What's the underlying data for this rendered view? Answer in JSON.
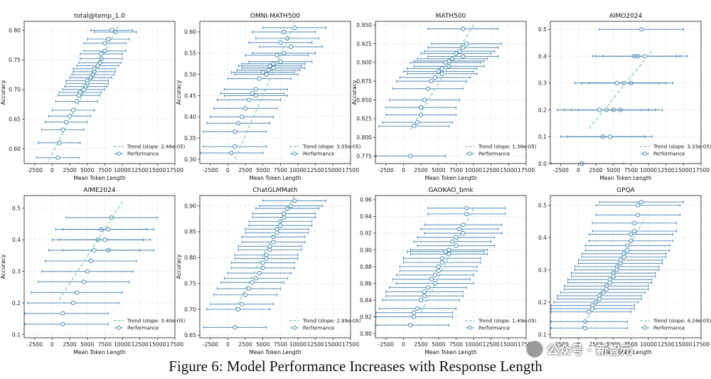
{
  "figure": {
    "caption": "Figure 6: Model Performance Increases with Response Length",
    "watermark": "公众号 · 新智元"
  },
  "colors": {
    "points": "#4a86b4",
    "trend": "#8fd3b5",
    "grid": "#d8d8d8",
    "frame": "#333333"
  },
  "legend": {
    "trend_label_prefix": "Trend (slope: ",
    "performance_label": "Performance"
  },
  "chart_data": [
    {
      "type": "scatter",
      "title": "total@temp_1.0",
      "xlabel": "Mean Token Length",
      "ylabel": "Accuracy",
      "xlim": [
        -4000,
        17500
      ],
      "ylim": [
        0.575,
        0.815
      ],
      "xticks": [
        "-2500",
        "0",
        "2500",
        "5000",
        "7500",
        "10000",
        "12500",
        "15000",
        "17500"
      ],
      "yticks": [
        "0.60",
        "0.65",
        "0.70",
        "0.75",
        "0.80"
      ],
      "ytick_values": [
        0.6,
        0.65,
        0.7,
        0.75,
        0.8
      ],
      "trend_slope": "2.46e-05",
      "trend": [
        [
          -500,
          0.58
        ],
        [
          9500,
          0.81
        ]
      ],
      "error_half": 3000,
      "points": [
        [
          8500,
          0.8
        ],
        [
          9000,
          0.797
        ],
        [
          8000,
          0.785
        ],
        [
          7500,
          0.778
        ],
        [
          7500,
          0.765
        ],
        [
          7000,
          0.76
        ],
        [
          7000,
          0.752
        ],
        [
          6800,
          0.745
        ],
        [
          6500,
          0.74
        ],
        [
          6000,
          0.735
        ],
        [
          6000,
          0.73
        ],
        [
          5800,
          0.725
        ],
        [
          5500,
          0.72
        ],
        [
          5000,
          0.715
        ],
        [
          5000,
          0.71
        ],
        [
          4800,
          0.705
        ],
        [
          4500,
          0.7
        ],
        [
          4000,
          0.695
        ],
        [
          3800,
          0.69
        ],
        [
          3500,
          0.68
        ],
        [
          3000,
          0.665
        ],
        [
          2500,
          0.655
        ],
        [
          2000,
          0.645
        ],
        [
          1500,
          0.632
        ],
        [
          1000,
          0.61
        ],
        [
          800,
          0.585
        ]
      ]
    },
    {
      "type": "scatter",
      "title": "OMNI-MATH500",
      "xlabel": "Mean Token Length",
      "ylabel": "Accuracy",
      "xlim": [
        -4000,
        17500
      ],
      "ylim": [
        0.29,
        0.625
      ],
      "xticks": [
        "-2500",
        "0",
        "2500",
        "5000",
        "7500",
        "10000",
        "12500",
        "15000",
        "17500"
      ],
      "yticks": [
        "0.30",
        "0.35",
        "0.40",
        "0.45",
        "0.50",
        "0.55",
        "0.60"
      ],
      "ytick_values": [
        0.3,
        0.35,
        0.4,
        0.45,
        0.5,
        0.55,
        0.6
      ],
      "trend_slope": "3.05e-05",
      "trend": [
        [
          1000,
          0.3
        ],
        [
          9500,
          0.62
        ]
      ],
      "error_half": 4500,
      "points": [
        [
          9500,
          0.61
        ],
        [
          8000,
          0.6
        ],
        [
          8500,
          0.585
        ],
        [
          7500,
          0.575
        ],
        [
          9000,
          0.565
        ],
        [
          8000,
          0.55
        ],
        [
          7000,
          0.545
        ],
        [
          7500,
          0.53
        ],
        [
          6500,
          0.525
        ],
        [
          6000,
          0.52
        ],
        [
          6500,
          0.515
        ],
        [
          5800,
          0.51
        ],
        [
          5000,
          0.505
        ],
        [
          5500,
          0.5
        ],
        [
          4500,
          0.49
        ],
        [
          4000,
          0.465
        ],
        [
          3500,
          0.455
        ],
        [
          4000,
          0.45
        ],
        [
          3000,
          0.44
        ],
        [
          2500,
          0.42
        ],
        [
          2000,
          0.4
        ],
        [
          1500,
          0.385
        ],
        [
          1000,
          0.365
        ],
        [
          1000,
          0.33
        ],
        [
          500,
          0.315
        ]
      ]
    },
    {
      "type": "scatter",
      "title": "MATH500",
      "xlabel": "Mean Token Length",
      "ylabel": "Accuracy",
      "xlim": [
        -4000,
        17500
      ],
      "ylim": [
        0.765,
        0.955
      ],
      "xticks": [
        "-2500",
        "0",
        "2500",
        "5000",
        "7500",
        "10000",
        "12500",
        "15000",
        "17500"
      ],
      "yticks": [
        "0.775",
        "0.800",
        "0.825",
        "0.850",
        "0.875",
        "0.900",
        "0.925",
        "0.950"
      ],
      "ytick_values": [
        0.775,
        0.8,
        0.825,
        0.85,
        0.875,
        0.9,
        0.925,
        0.95
      ],
      "trend_slope": "1.36e-05",
      "trend": [
        [
          1000,
          0.81
        ],
        [
          10000,
          0.95
        ]
      ],
      "error_half": 5000,
      "points": [
        [
          8500,
          0.945
        ],
        [
          9000,
          0.925
        ],
        [
          8500,
          0.92
        ],
        [
          8000,
          0.915
        ],
        [
          7500,
          0.912
        ],
        [
          8500,
          0.908
        ],
        [
          7000,
          0.905
        ],
        [
          6500,
          0.902
        ],
        [
          6000,
          0.9
        ],
        [
          6500,
          0.895
        ],
        [
          5500,
          0.892
        ],
        [
          5000,
          0.888
        ],
        [
          5500,
          0.885
        ],
        [
          4500,
          0.88
        ],
        [
          4000,
          0.875
        ],
        [
          3500,
          0.865
        ],
        [
          3000,
          0.85
        ],
        [
          2500,
          0.84
        ],
        [
          2500,
          0.83
        ],
        [
          2000,
          0.82
        ],
        [
          1500,
          0.815
        ],
        [
          1000,
          0.775
        ]
      ]
    },
    {
      "type": "scatter",
      "title": "AIMO2024",
      "xlabel": "Mean Token Length",
      "ylabel": "",
      "xlim": [
        -4000,
        17500
      ],
      "ylim": [
        0.0,
        0.53
      ],
      "xticks": [
        "-2500",
        "0",
        "2500",
        "5000",
        "7500",
        "10000",
        "12500",
        "15000",
        "17500"
      ],
      "yticks": [
        "0.0",
        "0.1",
        "0.2",
        "0.3",
        "0.4",
        "0.5"
      ],
      "ytick_values": [
        0.0,
        0.1,
        0.2,
        0.3,
        0.4,
        0.5
      ],
      "trend_slope": "3.33e-05",
      "trend": [
        [
          1500,
          0.13
        ],
        [
          10500,
          0.42
        ]
      ],
      "error_half": 6000,
      "points": [
        [
          9000,
          0.5
        ],
        [
          8000,
          0.4
        ],
        [
          8500,
          0.4
        ],
        [
          9500,
          0.4
        ],
        [
          7500,
          0.3
        ],
        [
          6500,
          0.3
        ],
        [
          5500,
          0.3
        ],
        [
          6000,
          0.2
        ],
        [
          5000,
          0.2
        ],
        [
          4000,
          0.2
        ],
        [
          3000,
          0.2
        ],
        [
          3500,
          0.1
        ],
        [
          4500,
          0.1
        ],
        [
          500,
          0.0
        ]
      ]
    },
    {
      "type": "scatter",
      "title": "AIME2024",
      "xlabel": "Mean Token Length",
      "ylabel": "Accuracy",
      "xlim": [
        -4000,
        17500
      ],
      "ylim": [
        0.09,
        0.54
      ],
      "xticks": [
        "-2500",
        "0",
        "2500",
        "5000",
        "7500",
        "10000",
        "12500",
        "15000",
        "17500"
      ],
      "yticks": [
        "0.1",
        "0.2",
        "0.3",
        "0.4",
        "0.5"
      ],
      "ytick_values": [
        0.1,
        0.2,
        0.3,
        0.4,
        0.5
      ],
      "trend_slope": "3.40e-05",
      "trend": [
        [
          1000,
          0.21
        ],
        [
          10000,
          0.52
        ]
      ],
      "error_half": 6500,
      "points": [
        [
          8500,
          0.47
        ],
        [
          7000,
          0.433
        ],
        [
          8000,
          0.433
        ],
        [
          6500,
          0.4
        ],
        [
          7500,
          0.4
        ],
        [
          8000,
          0.367
        ],
        [
          6000,
          0.367
        ],
        [
          5500,
          0.333
        ],
        [
          5000,
          0.3
        ],
        [
          4500,
          0.267
        ],
        [
          3500,
          0.233
        ],
        [
          3000,
          0.2
        ],
        [
          1500,
          0.167
        ],
        [
          1500,
          0.133
        ]
      ]
    },
    {
      "type": "scatter",
      "title": "ChatGLMMath",
      "xlabel": "Mean Token Length",
      "ylabel": "Accuracy",
      "xlim": [
        -4000,
        17500
      ],
      "ylim": [
        0.645,
        0.92
      ],
      "xticks": [
        "-2500",
        "0",
        "2500",
        "5000",
        "7500",
        "10000",
        "12500",
        "15000",
        "17500"
      ],
      "yticks": [
        "0.65",
        "0.70",
        "0.75",
        "0.80",
        "0.85",
        "0.90"
      ],
      "ytick_values": [
        0.65,
        0.7,
        0.75,
        0.8,
        0.85,
        0.9
      ],
      "trend_slope": "2.99e-05",
      "trend": [
        [
          1000,
          0.7
        ],
        [
          9500,
          0.92
        ]
      ],
      "error_half": 4500,
      "points": [
        [
          9500,
          0.91
        ],
        [
          9000,
          0.9
        ],
        [
          8500,
          0.895
        ],
        [
          8000,
          0.885
        ],
        [
          8000,
          0.878
        ],
        [
          7500,
          0.87
        ],
        [
          7500,
          0.862
        ],
        [
          7000,
          0.855
        ],
        [
          7000,
          0.848
        ],
        [
          6500,
          0.84
        ],
        [
          6500,
          0.83
        ],
        [
          6000,
          0.822
        ],
        [
          6000,
          0.815
        ],
        [
          5500,
          0.805
        ],
        [
          5500,
          0.798
        ],
        [
          5000,
          0.79
        ],
        [
          5000,
          0.78
        ],
        [
          4500,
          0.77
        ],
        [
          4000,
          0.76
        ],
        [
          3500,
          0.752
        ],
        [
          3000,
          0.74
        ],
        [
          2500,
          0.728
        ],
        [
          2000,
          0.71
        ],
        [
          1500,
          0.7
        ],
        [
          1000,
          0.665
        ]
      ]
    },
    {
      "type": "scatter",
      "title": "GAOKAO_bmk",
      "xlabel": "Mean Token Length",
      "ylabel": "",
      "xlim": [
        -4000,
        17500
      ],
      "ylim": [
        0.795,
        0.965
      ],
      "xticks": [
        "-2500",
        "0",
        "2500",
        "5000",
        "7500",
        "10000",
        "12500",
        "15000",
        "17500"
      ],
      "yticks": [
        "0.80",
        "0.82",
        "0.84",
        "0.86",
        "0.88",
        "0.90",
        "0.92",
        "0.94",
        "0.96"
      ],
      "ytick_values": [
        0.8,
        0.82,
        0.84,
        0.86,
        0.88,
        0.9,
        0.92,
        0.94,
        0.96
      ],
      "trend_slope": "1.49e-05",
      "trend": [
        [
          2500,
          0.825
        ],
        [
          10000,
          0.95
        ]
      ],
      "error_half": 5500,
      "points": [
        [
          9000,
          0.95
        ],
        [
          9000,
          0.943
        ],
        [
          8500,
          0.93
        ],
        [
          8000,
          0.925
        ],
        [
          8500,
          0.92
        ],
        [
          7500,
          0.915
        ],
        [
          7000,
          0.91
        ],
        [
          7500,
          0.905
        ],
        [
          6500,
          0.9
        ],
        [
          6000,
          0.898
        ],
        [
          6500,
          0.895
        ],
        [
          5500,
          0.89
        ],
        [
          5500,
          0.885
        ],
        [
          5000,
          0.88
        ],
        [
          5000,
          0.875
        ],
        [
          4500,
          0.87
        ],
        [
          4000,
          0.865
        ],
        [
          4500,
          0.86
        ],
        [
          3500,
          0.855
        ],
        [
          3000,
          0.85
        ],
        [
          3000,
          0.845
        ],
        [
          2500,
          0.84
        ],
        [
          2000,
          0.83
        ],
        [
          1500,
          0.825
        ],
        [
          1500,
          0.82
        ],
        [
          1000,
          0.81
        ]
      ]
    },
    {
      "type": "scatter",
      "title": "GPQA",
      "xlabel": "Mean Token Length",
      "ylabel": "",
      "xlim": [
        -4000,
        17500
      ],
      "ylim": [
        0.09,
        0.53
      ],
      "xticks": [
        "-2500",
        "0",
        "2500",
        "5000",
        "7500",
        "10000",
        "12500",
        "15000",
        "17500"
      ],
      "yticks": [
        "0.1",
        "0.2",
        "0.3",
        "0.4",
        "0.5"
      ],
      "ytick_values": [
        0.1,
        0.2,
        0.3,
        0.4,
        0.5
      ],
      "trend_slope": "4.24e-05",
      "trend": [
        [
          500,
          0.12
        ],
        [
          9500,
          0.46
        ]
      ],
      "error_half": 6000,
      "points": [
        [
          9000,
          0.51
        ],
        [
          8500,
          0.5
        ],
        [
          8500,
          0.47
        ],
        [
          8000,
          0.445
        ],
        [
          8000,
          0.42
        ],
        [
          7500,
          0.41
        ],
        [
          7500,
          0.39
        ],
        [
          7000,
          0.375
        ],
        [
          7000,
          0.36
        ],
        [
          6500,
          0.35
        ],
        [
          6500,
          0.34
        ],
        [
          6000,
          0.33
        ],
        [
          6000,
          0.32
        ],
        [
          5500,
          0.31
        ],
        [
          5500,
          0.3
        ],
        [
          5000,
          0.29
        ],
        [
          5000,
          0.28
        ],
        [
          4500,
          0.27
        ],
        [
          4500,
          0.26
        ],
        [
          4000,
          0.25
        ],
        [
          4000,
          0.24
        ],
        [
          3500,
          0.23
        ],
        [
          3000,
          0.22
        ],
        [
          3000,
          0.21
        ],
        [
          2500,
          0.2
        ],
        [
          2000,
          0.19
        ],
        [
          2000,
          0.18
        ],
        [
          1500,
          0.17
        ],
        [
          1000,
          0.14
        ],
        [
          1000,
          0.12
        ]
      ]
    }
  ]
}
